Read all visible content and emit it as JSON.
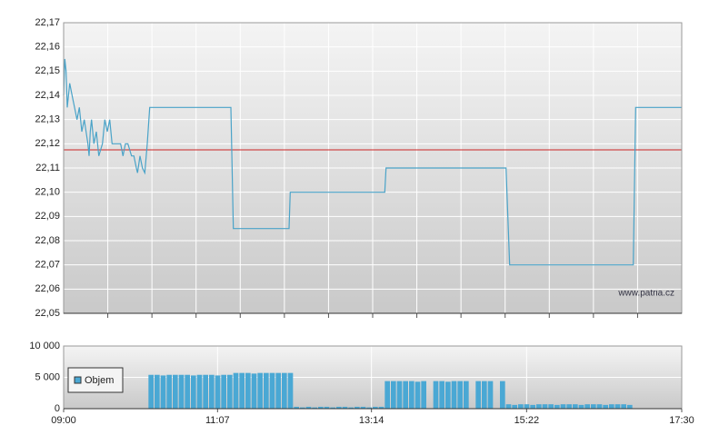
{
  "chart_data": [
    {
      "type": "line",
      "color": "#4aa3c8",
      "xlim": [
        "09:00",
        "17:30"
      ],
      "ylim": [
        22.05,
        22.17
      ],
      "yticks": [
        {
          "value": 22.05,
          "label": "22,05"
        },
        {
          "value": 22.06,
          "label": "22,06"
        },
        {
          "value": 22.07,
          "label": "22,07"
        },
        {
          "value": 22.08,
          "label": "22,08"
        },
        {
          "value": 22.09,
          "label": "22,09"
        },
        {
          "value": 22.1,
          "label": "22,10"
        },
        {
          "value": 22.11,
          "label": "22,11"
        },
        {
          "value": 22.12,
          "label": "22,12"
        },
        {
          "value": 22.13,
          "label": "22,13"
        },
        {
          "value": 22.14,
          "label": "22,14"
        },
        {
          "value": 22.15,
          "label": "22,15"
        },
        {
          "value": 22.16,
          "label": "22,16"
        },
        {
          "value": 22.17,
          "label": "22,17"
        }
      ],
      "grid": true,
      "reference_line": {
        "value": 22.1175,
        "color": "#cc2222"
      },
      "watermark": "www.patria.cz",
      "x": [
        "09:00",
        "09:01",
        "09:02",
        "09:03",
        "09:05",
        "09:07",
        "09:09",
        "09:11",
        "09:13",
        "09:15",
        "09:17",
        "09:20",
        "09:21",
        "09:22",
        "09:23",
        "09:25",
        "09:27",
        "09:29",
        "09:32",
        "09:34",
        "09:36",
        "09:38",
        "09:40",
        "09:42",
        "09:44",
        "09:47",
        "09:49",
        "09:51",
        "09:53",
        "09:56",
        "09:58",
        "10:00",
        "10:01",
        "10:03",
        "10:05",
        "10:07",
        "10:09",
        "10:11",
        "11:18",
        "11:20",
        "12:06",
        "12:07",
        "13:25",
        "13:26",
        "15:05",
        "15:08",
        "16:50",
        "16:52",
        "17:30"
      ],
      "values": [
        22.14,
        22.155,
        22.15,
        22.135,
        22.145,
        22.14,
        22.135,
        22.13,
        22.135,
        22.125,
        22.13,
        22.12,
        22.115,
        22.125,
        22.13,
        22.12,
        22.125,
        22.115,
        22.12,
        22.13,
        22.125,
        22.13,
        22.12,
        22.12,
        22.12,
        22.12,
        22.115,
        22.12,
        22.12,
        22.115,
        22.115,
        22.11,
        22.108,
        22.115,
        22.11,
        22.108,
        22.12,
        22.135,
        22.135,
        22.085,
        22.085,
        22.1,
        22.1,
        22.11,
        22.11,
        22.07,
        22.07,
        22.135,
        22.135
      ]
    },
    {
      "type": "bar",
      "legend": "upper left",
      "xlim": [
        "09:00",
        "17:30"
      ],
      "xticks": [
        "09:00",
        "11:07",
        "13:14",
        "15:22",
        "17:30"
      ],
      "ylim": [
        0,
        10000
      ],
      "yticks": [
        0,
        {
          "value": 5000,
          "label": "5 000"
        },
        {
          "value": 10000,
          "label": "10 000"
        }
      ],
      "grid": true,
      "series": [
        {
          "name": "Objem",
          "color": "#4aa8d4",
          "x": [
            "10:10",
            "10:15",
            "10:20",
            "10:25",
            "10:30",
            "10:35",
            "10:40",
            "10:45",
            "10:50",
            "10:55",
            "11:00",
            "11:05",
            "11:10",
            "11:15",
            "11:20",
            "11:25",
            "11:30",
            "11:35",
            "11:40",
            "11:45",
            "11:50",
            "11:55",
            "12:00",
            "12:05",
            "12:10",
            "12:15",
            "12:20",
            "12:25",
            "12:30",
            "12:35",
            "12:40",
            "12:45",
            "12:50",
            "12:55",
            "13:00",
            "13:05",
            "13:10",
            "13:15",
            "13:20",
            "13:25",
            "13:30",
            "13:35",
            "13:40",
            "13:45",
            "13:50",
            "13:55",
            "14:00",
            "14:05",
            "14:10",
            "14:15",
            "14:20",
            "14:25",
            "14:30",
            "14:35",
            "14:40",
            "14:45",
            "14:50",
            "14:55",
            "15:00",
            "15:05",
            "15:10",
            "15:15",
            "15:20",
            "15:25",
            "15:30",
            "15:35",
            "15:40",
            "15:45",
            "15:50",
            "15:55",
            "16:00",
            "16:05",
            "16:10",
            "16:15",
            "16:20",
            "16:25",
            "16:30",
            "16:35",
            "16:40",
            "16:45"
          ],
          "values": [
            5400,
            5400,
            5300,
            5400,
            5400,
            5400,
            5400,
            5300,
            5400,
            5400,
            5400,
            5300,
            5400,
            5400,
            5700,
            5700,
            5700,
            5600,
            5700,
            5700,
            5700,
            5700,
            5700,
            5700,
            300,
            200,
            300,
            200,
            300,
            300,
            200,
            300,
            300,
            200,
            300,
            300,
            200,
            300,
            300,
            4400,
            4400,
            4400,
            4400,
            4400,
            4300,
            4400,
            0,
            4400,
            4400,
            4300,
            4400,
            4400,
            4400,
            0,
            4400,
            4400,
            4400,
            0,
            4400,
            700,
            600,
            700,
            700,
            600,
            700,
            700,
            700,
            600,
            700,
            700,
            700,
            600,
            700,
            700,
            700,
            600,
            700,
            700,
            700,
            600
          ]
        }
      ]
    }
  ]
}
